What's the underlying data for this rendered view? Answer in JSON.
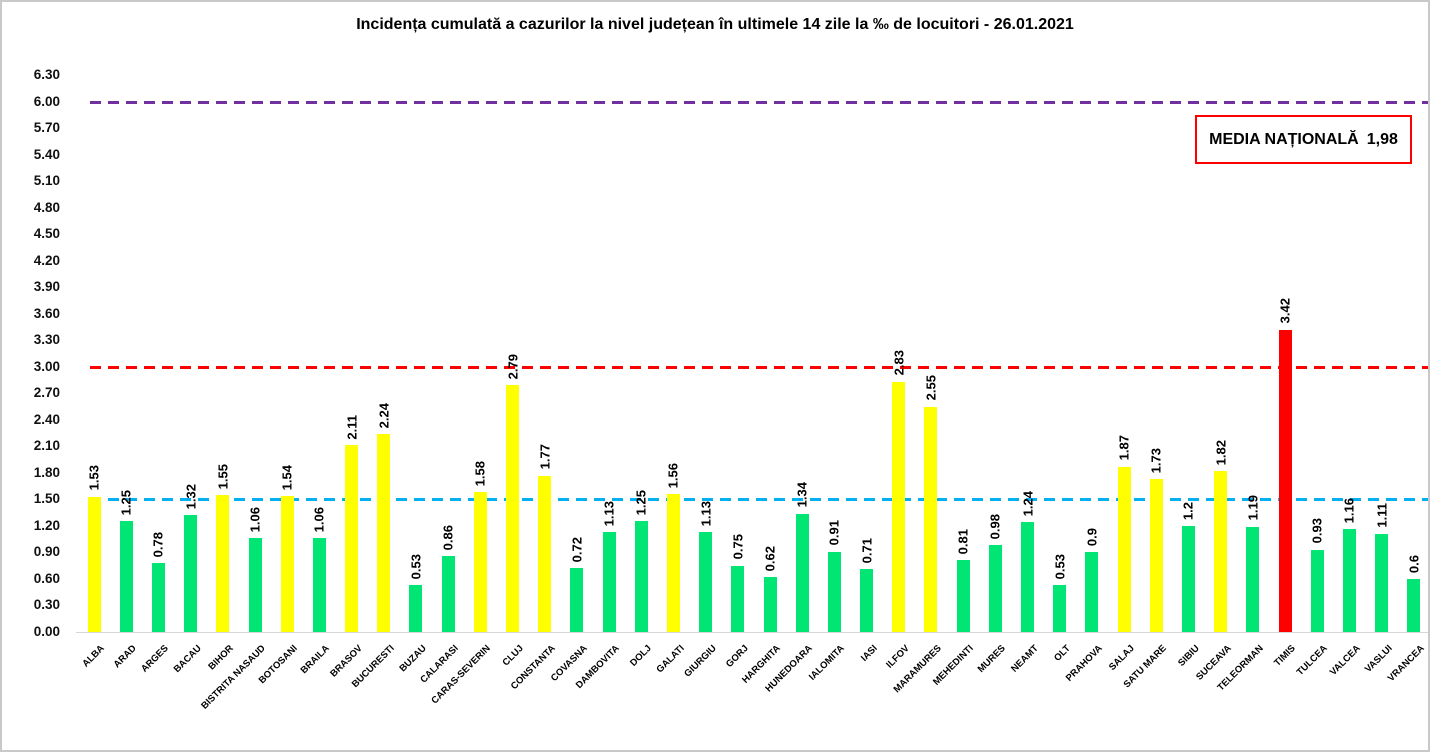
{
  "chart_data": {
    "type": "bar",
    "title": "Incidența cumulată a cazurilor la nivel județean în ultimele 14 zile la ‰ de locuitori - 26.01.2021",
    "categories": [
      "ALBA",
      "ARAD",
      "ARGES",
      "BACAU",
      "BIHOR",
      "BISTRITA NASAUD",
      "BOTOSANI",
      "BRAILA",
      "BRASOV",
      "BUCURESTI",
      "BUZAU",
      "CALARASI",
      "CARAS-SEVERIN",
      "CLUJ",
      "CONSTANTA",
      "COVASNA",
      "DAMBOVITA",
      "DOLJ",
      "GALATI",
      "GIURGIU",
      "GORJ",
      "HARGHITA",
      "HUNEDOARA",
      "IALOMITA",
      "IASI",
      "ILFOV",
      "MARAMURES",
      "MEHEDINTI",
      "MURES",
      "NEAMT",
      "OLT",
      "PRAHOVA",
      "SALAJ",
      "SATU MARE",
      "SIBIU",
      "SUCEAVA",
      "TELEORMAN",
      "TIMIS",
      "TULCEA",
      "VALCEA",
      "VASLUI",
      "VRANCEA"
    ],
    "values": [
      1.53,
      1.25,
      0.78,
      1.32,
      1.55,
      1.06,
      1.54,
      1.06,
      2.11,
      2.24,
      0.53,
      0.86,
      1.58,
      2.79,
      1.77,
      0.72,
      1.13,
      1.25,
      1.56,
      1.13,
      0.75,
      0.62,
      1.34,
      0.91,
      0.71,
      2.83,
      2.55,
      0.81,
      0.98,
      1.24,
      0.53,
      0.9,
      1.87,
      1.73,
      1.2,
      1.82,
      1.19,
      3.42,
      0.93,
      1.16,
      1.11,
      0.6
    ],
    "value_labels": [
      "1.53",
      "1.25",
      "0.78",
      "1.32",
      "1.55",
      "1.06",
      "1.54",
      "1.06",
      "2.11",
      "2.24",
      "0.53",
      "0.86",
      "1.58",
      "2.79",
      "1.77",
      "0.72",
      "1.13",
      "1.25",
      "1.56",
      "1.13",
      "0.75",
      "0.62",
      "1.34",
      "0.91",
      "0.71",
      "2.83",
      "2.55",
      "0.81",
      "0.98",
      "1.24",
      "0.53",
      "0.9",
      "1.87",
      "1.73",
      "1.2",
      "1.82",
      "1.19",
      "3.42",
      "0.93",
      "1.16",
      "1.11",
      "0.6"
    ],
    "bar_colors": [
      "#FFFF00",
      "#00E573",
      "#00E573",
      "#00E573",
      "#FFFF00",
      "#00E573",
      "#FFFF00",
      "#00E573",
      "#FFFF00",
      "#FFFF00",
      "#00E573",
      "#00E573",
      "#FFFF00",
      "#FFFF00",
      "#FFFF00",
      "#00E573",
      "#00E573",
      "#00E573",
      "#FFFF00",
      "#00E573",
      "#00E573",
      "#00E573",
      "#00E573",
      "#00E573",
      "#00E573",
      "#FFFF00",
      "#FFFF00",
      "#00E573",
      "#00E573",
      "#00E573",
      "#00E573",
      "#00E573",
      "#FFFF00",
      "#FFFF00",
      "#00E573",
      "#FFFF00",
      "#00E573",
      "#FF0000",
      "#00E573",
      "#00E573",
      "#00E573",
      "#00E573"
    ],
    "palette": {
      "below_1_5": "#00E573",
      "between_1_5_and_3": "#FFFF00",
      "above_3": "#FF0000"
    },
    "xlabel": "",
    "ylabel": "",
    "ylim": [
      0,
      6.3
    ],
    "ytick_step": 0.3,
    "ytick_labels": [
      "0.00",
      "0.30",
      "0.60",
      "0.90",
      "1.20",
      "1.50",
      "1.80",
      "2.10",
      "2.40",
      "2.70",
      "3.00",
      "3.30",
      "3.60",
      "3.90",
      "4.20",
      "4.50",
      "4.80",
      "5.10",
      "5.40",
      "5.70",
      "6.00",
      "6.30"
    ],
    "grid": false,
    "legend": "none",
    "reference_lines": [
      {
        "name": "purple-threshold-line",
        "value": 6.0,
        "color": "#7030A0",
        "style": "dashed"
      },
      {
        "name": "red-threshold-line",
        "value": 3.0,
        "color": "#FF0000",
        "style": "dashed"
      },
      {
        "name": "blue-threshold-line",
        "value": 1.5,
        "color": "#00B0F0",
        "style": "dashed"
      }
    ],
    "annotation_box": {
      "label": "MEDIA NAȚIONALĂ",
      "value": "1,98",
      "border_color": "#FF0000"
    }
  }
}
